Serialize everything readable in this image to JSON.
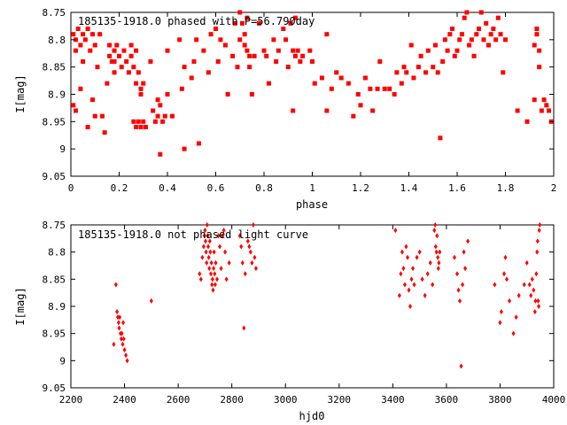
{
  "chart_data": [
    {
      "type": "scatter",
      "title": "185135-1918.0 phased with P=56.790day",
      "xlabel": "phase",
      "ylabel": "I[mag]",
      "xlim": [
        0,
        2
      ],
      "ylim": [
        9.05,
        8.75
      ],
      "y_inverted": true,
      "xticks": [
        "0",
        "0.2",
        "0.4",
        "0.6",
        "0.8",
        "1",
        "1.2",
        "1.4",
        "1.6",
        "1.8",
        "2"
      ],
      "yticks": [
        "8.75",
        "8.8",
        "8.85",
        "8.9",
        "8.95",
        "9",
        "9.05"
      ],
      "grid": false,
      "marker": "filled-square",
      "marker_color": "#ff0000",
      "points": [
        [
          0.01,
          8.79
        ],
        [
          0.02,
          8.8
        ],
        [
          0.02,
          8.82
        ],
        [
          0.03,
          8.78
        ],
        [
          0.04,
          8.81
        ],
        [
          0.05,
          8.79
        ],
        [
          0.05,
          8.84
        ],
        [
          0.06,
          8.8
        ],
        [
          0.07,
          8.78
        ],
        [
          0.08,
          8.82
        ],
        [
          0.09,
          8.79
        ],
        [
          0.1,
          8.81
        ],
        [
          0.01,
          8.92
        ],
        [
          0.02,
          8.93
        ],
        [
          0.04,
          8.89
        ],
        [
          0.07,
          8.96
        ],
        [
          0.09,
          8.91
        ],
        [
          0.1,
          8.94
        ],
        [
          0.11,
          8.85
        ],
        [
          0.12,
          8.79
        ],
        [
          0.13,
          8.94
        ],
        [
          0.14,
          8.97
        ],
        [
          0.15,
          8.88
        ],
        [
          0.16,
          8.83
        ],
        [
          0.16,
          8.81
        ],
        [
          0.17,
          8.84
        ],
        [
          0.18,
          8.82
        ],
        [
          0.18,
          8.86
        ],
        [
          0.19,
          8.81
        ],
        [
          0.2,
          8.83
        ],
        [
          0.21,
          8.85
        ],
        [
          0.22,
          8.82
        ],
        [
          0.23,
          8.84
        ],
        [
          0.24,
          8.86
        ],
        [
          0.25,
          8.83
        ],
        [
          0.26,
          8.85
        ],
        [
          0.27,
          8.88
        ],
        [
          0.28,
          8.86
        ],
        [
          0.29,
          8.9
        ],
        [
          0.3,
          8.88
        ],
        [
          0.25,
          8.81
        ],
        [
          0.27,
          8.82
        ],
        [
          0.29,
          8.89
        ],
        [
          0.18,
          8.84
        ],
        [
          0.26,
          8.95
        ],
        [
          0.27,
          8.96
        ],
        [
          0.28,
          8.95
        ],
        [
          0.29,
          8.96
        ],
        [
          0.3,
          8.95
        ],
        [
          0.31,
          8.96
        ],
        [
          0.33,
          8.84
        ],
        [
          0.34,
          8.93
        ],
        [
          0.35,
          8.95
        ],
        [
          0.36,
          8.94
        ],
        [
          0.36,
          8.91
        ],
        [
          0.37,
          8.92
        ],
        [
          0.38,
          8.95
        ],
        [
          0.39,
          8.94
        ],
        [
          0.4,
          8.9
        ],
        [
          0.37,
          9.01
        ],
        [
          0.4,
          8.82
        ],
        [
          0.42,
          8.94
        ],
        [
          0.45,
          8.8
        ],
        [
          0.46,
          8.89
        ],
        [
          0.47,
          8.85
        ],
        [
          0.47,
          9.0
        ],
        [
          0.5,
          8.87
        ],
        [
          0.51,
          8.84
        ],
        [
          0.52,
          8.8
        ],
        [
          0.53,
          8.99
        ],
        [
          0.55,
          8.82
        ],
        [
          0.57,
          8.86
        ],
        [
          0.58,
          8.79
        ],
        [
          0.6,
          8.78
        ],
        [
          0.61,
          8.84
        ],
        [
          0.62,
          8.8
        ],
        [
          0.64,
          8.81
        ],
        [
          0.65,
          8.9
        ],
        [
          0.67,
          8.83
        ],
        [
          0.68,
          8.77
        ],
        [
          0.69,
          8.85
        ],
        [
          0.7,
          8.8
        ],
        [
          0.7,
          8.75
        ],
        [
          0.71,
          8.77
        ],
        [
          0.72,
          8.79
        ],
        [
          0.72,
          8.81
        ],
        [
          0.73,
          8.76
        ],
        [
          0.73,
          8.82
        ],
        [
          0.74,
          8.83
        ],
        [
          0.74,
          8.85
        ],
        [
          0.75,
          8.9
        ],
        [
          0.76,
          8.83
        ],
        [
          0.78,
          8.77
        ],
        [
          0.8,
          8.82
        ],
        [
          0.81,
          8.83
        ],
        [
          0.82,
          8.88
        ],
        [
          0.84,
          8.8
        ],
        [
          0.85,
          8.84
        ],
        [
          0.86,
          8.82
        ],
        [
          0.88,
          8.78
        ],
        [
          0.89,
          8.8
        ],
        [
          0.9,
          8.85
        ],
        [
          0.91,
          8.77
        ],
        [
          0.92,
          8.82
        ],
        [
          0.93,
          8.83
        ],
        [
          0.93,
          8.76
        ],
        [
          0.94,
          8.82
        ],
        [
          0.95,
          8.84
        ],
        [
          0.96,
          8.83
        ],
        [
          0.99,
          8.82
        ],
        [
          1.0,
          8.84
        ],
        [
          0.92,
          8.93
        ],
        [
          1.01,
          8.88
        ],
        [
          1.04,
          8.87
        ],
        [
          1.06,
          8.93
        ],
        [
          1.06,
          8.79
        ],
        [
          1.08,
          8.89
        ],
        [
          1.1,
          8.86
        ],
        [
          1.12,
          8.87
        ],
        [
          1.15,
          8.88
        ],
        [
          1.17,
          8.94
        ],
        [
          1.19,
          8.9
        ],
        [
          1.2,
          8.92
        ],
        [
          1.22,
          8.87
        ],
        [
          1.24,
          8.89
        ],
        [
          1.25,
          8.93
        ],
        [
          1.27,
          8.89
        ],
        [
          1.28,
          8.84
        ],
        [
          1.3,
          8.89
        ],
        [
          1.32,
          8.89
        ],
        [
          1.34,
          8.9
        ],
        [
          1.35,
          8.86
        ],
        [
          1.37,
          8.88
        ],
        [
          1.38,
          8.85
        ],
        [
          1.39,
          8.86
        ],
        [
          1.41,
          8.81
        ],
        [
          1.42,
          8.87
        ],
        [
          1.44,
          8.85
        ],
        [
          1.45,
          8.83
        ],
        [
          1.47,
          8.86
        ],
        [
          1.48,
          8.82
        ],
        [
          1.5,
          8.85
        ],
        [
          1.51,
          8.81
        ],
        [
          1.52,
          8.86
        ],
        [
          1.53,
          8.98
        ],
        [
          1.54,
          8.84
        ],
        [
          1.55,
          8.8
        ],
        [
          1.56,
          8.82
        ],
        [
          1.57,
          8.79
        ],
        [
          1.58,
          8.78
        ],
        [
          1.59,
          8.83
        ],
        [
          1.6,
          8.82
        ],
        [
          1.61,
          8.8
        ],
        [
          1.62,
          8.79
        ],
        [
          1.63,
          8.76
        ],
        [
          1.64,
          8.75
        ],
        [
          1.65,
          8.81
        ],
        [
          1.66,
          8.8
        ],
        [
          1.67,
          8.83
        ],
        [
          1.68,
          8.79
        ],
        [
          1.69,
          8.78
        ],
        [
          1.7,
          8.75
        ],
        [
          1.71,
          8.8
        ],
        [
          1.72,
          8.77
        ],
        [
          1.73,
          8.81
        ],
        [
          1.74,
          8.79
        ],
        [
          1.75,
          8.78
        ],
        [
          1.76,
          8.8
        ],
        [
          1.77,
          8.76
        ],
        [
          1.78,
          8.79
        ],
        [
          1.79,
          8.86
        ],
        [
          1.8,
          8.8
        ],
        [
          1.85,
          8.93
        ],
        [
          1.89,
          8.95
        ],
        [
          1.92,
          8.91
        ],
        [
          1.93,
          8.79
        ],
        [
          1.94,
          8.82
        ],
        [
          1.94,
          8.85
        ],
        [
          1.95,
          8.93
        ],
        [
          1.96,
          8.91
        ],
        [
          1.97,
          8.92
        ],
        [
          1.98,
          8.93
        ],
        [
          1.99,
          8.95
        ],
        [
          1.93,
          8.78
        ],
        [
          1.92,
          8.81
        ]
      ]
    },
    {
      "type": "scatter",
      "title": "185135-1918.0 not phased light curve",
      "xlabel": "hjd0",
      "ylabel": "I[mag]",
      "xlim": [
        2200,
        4000
      ],
      "ylim": [
        9.05,
        8.75
      ],
      "y_inverted": true,
      "xticks": [
        "2200",
        "2400",
        "2600",
        "2800",
        "3000",
        "3200",
        "3400",
        "3600",
        "3800",
        "4000"
      ],
      "yticks": [
        "8.75",
        "8.8",
        "8.85",
        "8.9",
        "8.95",
        "9",
        "9.05"
      ],
      "grid": false,
      "marker": "filled-diamond",
      "marker_color": "#ff0000",
      "points": [
        [
          2360,
          8.97
        ],
        [
          2368,
          8.86
        ],
        [
          2372,
          8.91
        ],
        [
          2375,
          8.92
        ],
        [
          2378,
          8.93
        ],
        [
          2380,
          8.94
        ],
        [
          2382,
          8.92
        ],
        [
          2385,
          8.95
        ],
        [
          2388,
          8.96
        ],
        [
          2390,
          8.95
        ],
        [
          2393,
          8.97
        ],
        [
          2395,
          8.93
        ],
        [
          2397,
          8.96
        ],
        [
          2400,
          8.98
        ],
        [
          2405,
          8.99
        ],
        [
          2410,
          9.0
        ],
        [
          2500,
          8.89
        ],
        [
          2680,
          8.84
        ],
        [
          2685,
          8.85
        ],
        [
          2690,
          8.81
        ],
        [
          2695,
          8.79
        ],
        [
          2698,
          8.77
        ],
        [
          2700,
          8.76
        ],
        [
          2702,
          8.78
        ],
        [
          2704,
          8.8
        ],
        [
          2706,
          8.82
        ],
        [
          2708,
          8.75
        ],
        [
          2710,
          8.77
        ],
        [
          2712,
          8.79
        ],
        [
          2714,
          8.81
        ],
        [
          2716,
          8.83
        ],
        [
          2718,
          8.78
        ],
        [
          2720,
          8.8
        ],
        [
          2722,
          8.84
        ],
        [
          2724,
          8.82
        ],
        [
          2726,
          8.86
        ],
        [
          2728,
          8.85
        ],
        [
          2730,
          8.87
        ],
        [
          2732,
          8.83
        ],
        [
          2734,
          8.8
        ],
        [
          2736,
          8.84
        ],
        [
          2738,
          8.86
        ],
        [
          2740,
          8.82
        ],
        [
          2745,
          8.85
        ],
        [
          2750,
          8.77
        ],
        [
          2755,
          8.79
        ],
        [
          2760,
          8.83
        ],
        [
          2765,
          8.77
        ],
        [
          2770,
          8.76
        ],
        [
          2775,
          8.8
        ],
        [
          2780,
          8.85
        ],
        [
          2790,
          8.82
        ],
        [
          2830,
          8.77
        ],
        [
          2835,
          8.79
        ],
        [
          2840,
          8.82
        ],
        [
          2845,
          8.94
        ],
        [
          2850,
          8.84
        ],
        [
          2860,
          8.78
        ],
        [
          2865,
          8.79
        ],
        [
          2870,
          8.8
        ],
        [
          2875,
          8.82
        ],
        [
          2880,
          8.75
        ],
        [
          2885,
          8.81
        ],
        [
          2890,
          8.83
        ],
        [
          3410,
          8.76
        ],
        [
          3425,
          8.88
        ],
        [
          3430,
          8.84
        ],
        [
          3435,
          8.8
        ],
        [
          3440,
          8.83
        ],
        [
          3445,
          8.86
        ],
        [
          3450,
          8.79
        ],
        [
          3455,
          8.81
        ],
        [
          3460,
          8.87
        ],
        [
          3465,
          8.9
        ],
        [
          3470,
          8.85
        ],
        [
          3475,
          8.83
        ],
        [
          3480,
          8.86
        ],
        [
          3490,
          8.81
        ],
        [
          3500,
          8.8
        ],
        [
          3510,
          8.85
        ],
        [
          3520,
          8.88
        ],
        [
          3530,
          8.84
        ],
        [
          3540,
          8.82
        ],
        [
          3548,
          8.86
        ],
        [
          3555,
          8.76
        ],
        [
          3558,
          8.75
        ],
        [
          3560,
          8.79
        ],
        [
          3563,
          8.8
        ],
        [
          3565,
          8.77
        ],
        [
          3568,
          8.81
        ],
        [
          3570,
          8.83
        ],
        [
          3572,
          8.82
        ],
        [
          3575,
          8.8
        ],
        [
          3630,
          8.81
        ],
        [
          3640,
          8.84
        ],
        [
          3645,
          8.87
        ],
        [
          3650,
          8.89
        ],
        [
          3655,
          9.01
        ],
        [
          3660,
          8.86
        ],
        [
          3665,
          8.8
        ],
        [
          3670,
          8.83
        ],
        [
          3680,
          8.78
        ],
        [
          3780,
          8.86
        ],
        [
          3800,
          8.93
        ],
        [
          3805,
          8.91
        ],
        [
          3815,
          8.84
        ],
        [
          3820,
          8.81
        ],
        [
          3825,
          8.85
        ],
        [
          3835,
          8.89
        ],
        [
          3850,
          8.95
        ],
        [
          3860,
          8.92
        ],
        [
          3870,
          8.88
        ],
        [
          3890,
          8.86
        ],
        [
          3900,
          8.82
        ],
        [
          3910,
          8.86
        ],
        [
          3915,
          8.88
        ],
        [
          3920,
          8.85
        ],
        [
          3925,
          8.87
        ],
        [
          3930,
          8.91
        ],
        [
          3932,
          8.89
        ],
        [
          3935,
          8.84
        ],
        [
          3938,
          8.8
        ],
        [
          3940,
          8.78
        ],
        [
          3942,
          8.89
        ],
        [
          3944,
          8.9
        ],
        [
          3946,
          8.76
        ],
        [
          3948,
          8.75
        ]
      ]
    }
  ]
}
